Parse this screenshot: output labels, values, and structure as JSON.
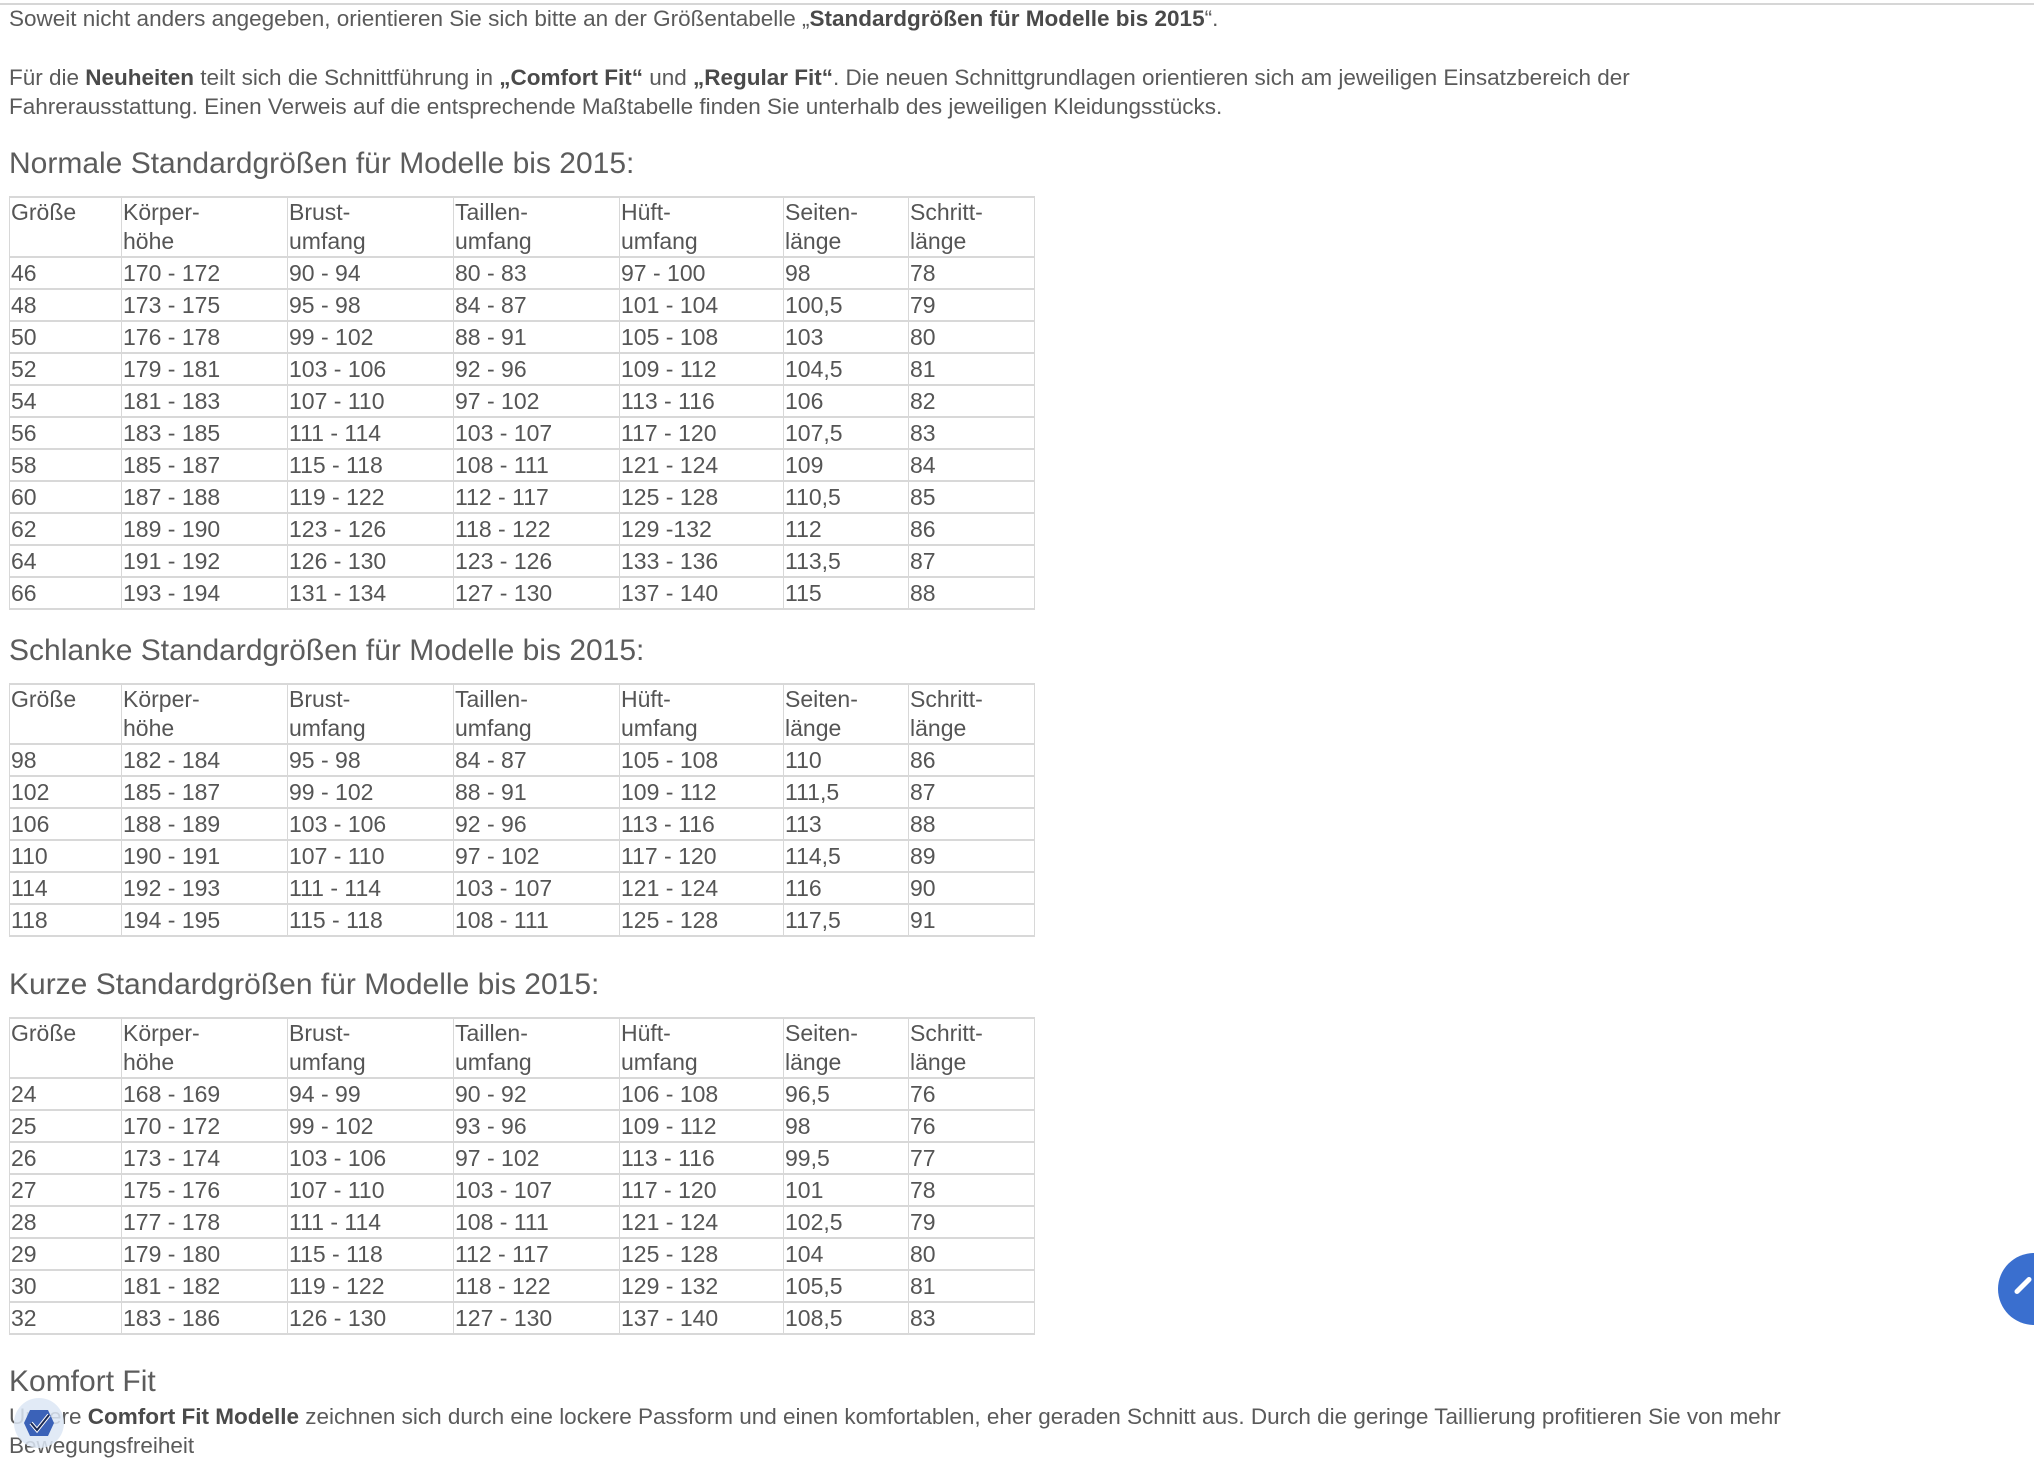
{
  "intro": [
    {
      "text": "Soweit nicht anders angegeben, orientieren Sie sich bitte an der Größentabelle „",
      "bold": false
    },
    {
      "text": "Standardgrößen für Modelle bis 2015",
      "bold": true
    },
    {
      "text": "“.",
      "bold": false
    }
  ],
  "fit_note": [
    {
      "text": "Für die ",
      "bold": false
    },
    {
      "text": "Neuheiten",
      "bold": true
    },
    {
      "text": " teilt sich die Schnittführung in ",
      "bold": false
    },
    {
      "text": "„Comfort Fit“",
      "bold": true
    },
    {
      "text": " und ",
      "bold": false
    },
    {
      "text": "„Regular Fit“",
      "bold": true
    },
    {
      "text": ". Die neuen Schnittgrundlagen orientieren sich am jeweiligen Einsatzbereich der Fahrerausstattung. Einen Verweis auf die entsprechende Maßtabelle finden Sie unterhalb des jeweiligen Kleidungsstücks.",
      "bold": false
    }
  ],
  "headers": [
    [
      "Größe",
      ""
    ],
    [
      "Körper-",
      "höhe"
    ],
    [
      "Brust-",
      "umfang"
    ],
    [
      "Taillen-",
      "umfang"
    ],
    [
      "Hüft-",
      "umfang"
    ],
    [
      "Seiten-",
      "länge"
    ],
    [
      "Schritt-",
      "länge"
    ]
  ],
  "tables": [
    {
      "title": "Normale Standardgrößen für Modelle bis 2015:",
      "rows": [
        [
          "46",
          "170 - 172",
          "90 - 94",
          "80 - 83",
          "97 - 100",
          "98",
          "78"
        ],
        [
          "48",
          "173 - 175",
          "95 - 98",
          "84 - 87",
          "101 - 104",
          "100,5",
          "79"
        ],
        [
          "50",
          "176 - 178",
          "99 - 102",
          "88 - 91",
          "105 - 108",
          "103",
          "80"
        ],
        [
          "52",
          "179 - 181",
          "103 - 106",
          "92 - 96",
          "109 - 112",
          "104,5",
          "81"
        ],
        [
          "54",
          "181 - 183",
          "107 - 110",
          "97 - 102",
          "113 - 116",
          "106",
          "82"
        ],
        [
          "56",
          "183 - 185",
          "111 - 114",
          "103 - 107",
          "117 - 120",
          "107,5",
          "83"
        ],
        [
          "58",
          "185 - 187",
          "115 - 118",
          "108 - 111",
          "121 - 124",
          "109",
          "84"
        ],
        [
          "60",
          "187 - 188",
          "119 - 122",
          "112 - 117",
          "125 - 128",
          "110,5",
          "85"
        ],
        [
          "62",
          "189 - 190",
          "123 - 126",
          "118 - 122",
          "129 -132",
          "112",
          "86"
        ],
        [
          "64",
          "191 - 192",
          "126 - 130",
          "123 - 126",
          "133 - 136",
          "113,5",
          "87"
        ],
        [
          "66",
          "193 - 194",
          "131 - 134",
          "127 - 130",
          "137 - 140",
          "115",
          "88"
        ]
      ]
    },
    {
      "title": "Schlanke Standardgrößen für Modelle bis 2015:",
      "rows": [
        [
          "98",
          "182 - 184",
          "95 - 98",
          "84 - 87",
          "105 - 108",
          "110",
          "86"
        ],
        [
          "102",
          "185 - 187",
          "99 - 102",
          "88 - 91",
          "109 - 112",
          "111,5",
          "87"
        ],
        [
          "106",
          "188 - 189",
          "103 - 106",
          "92 - 96",
          "113 - 116",
          "113",
          "88"
        ],
        [
          "110",
          "190 - 191",
          "107 - 110",
          "97 - 102",
          "117 - 120",
          "114,5",
          "89"
        ],
        [
          "114",
          "192 - 193",
          "111 - 114",
          "103 - 107",
          "121 - 124",
          "116",
          "90"
        ],
        [
          "118",
          "194 - 195",
          "115 - 118",
          "108 - 111",
          "125 - 128",
          "117,5",
          "91"
        ]
      ]
    },
    {
      "title": "Kurze Standardgrößen für Modelle bis 2015:",
      "rows": [
        [
          "24",
          "168 - 169",
          "94 - 99",
          "90 - 92",
          "106 - 108",
          "96,5",
          "76"
        ],
        [
          "25",
          "170 - 172",
          "99 - 102",
          "93 - 96",
          "109 - 112",
          "98",
          "76"
        ],
        [
          "26",
          "173 - 174",
          "103 - 106",
          "97 - 102",
          "113 - 116",
          "99,5",
          "77"
        ],
        [
          "27",
          "175 - 176",
          "107 - 110",
          "103 - 107",
          "117 - 120",
          "101",
          "78"
        ],
        [
          "28",
          "177 - 178",
          "111 - 114",
          "108 - 111",
          "121 - 124",
          "102,5",
          "79"
        ],
        [
          "29",
          "179 - 180",
          "115 - 118",
          "112 - 117",
          "125 - 128",
          "104",
          "80"
        ],
        [
          "30",
          "181 - 182",
          "119 - 122",
          "118 - 122",
          "129 - 132",
          "105,5",
          "81"
        ],
        [
          "32",
          "183 - 186",
          "126 - 130",
          "127 - 130",
          "137 - 140",
          "108,5",
          "83"
        ]
      ]
    }
  ],
  "komfort": {
    "title": "Komfort Fit",
    "text": [
      {
        "text": "Unsere ",
        "bold": false
      },
      {
        "text": "Comfort Fit Modelle",
        "bold": true
      },
      {
        "text": " zeichnen sich durch eine lockere Passform und einen komfortablen, eher geraden Schnitt aus. Durch die geringe Taillierung profitieren Sie von mehr Bewegungsfreiheit",
        "bold": false
      }
    ]
  },
  "icons": {
    "floating_button": "pencil-icon",
    "badge": "checkmark-shield-icon"
  },
  "colors": {
    "text": "#5a5a5a",
    "border": "#d8d8d8",
    "accent": "#3a6fcf"
  }
}
